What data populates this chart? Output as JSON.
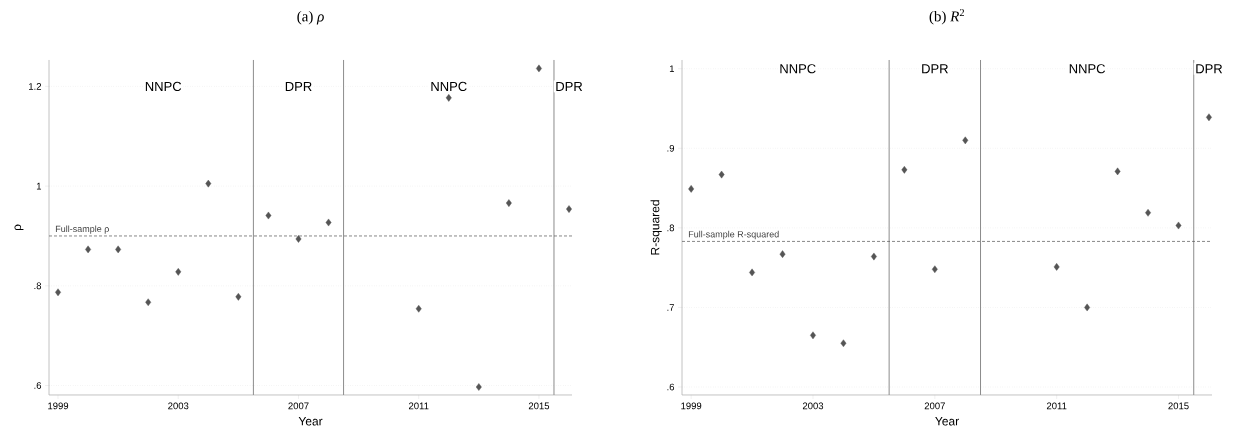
{
  "chart_data": [
    {
      "type": "scatter",
      "title": "(a) *ρ*",
      "xlabel": "Year",
      "ylabel": "ρ",
      "x": [
        1999,
        2000,
        2001,
        2002,
        2003,
        2004,
        2005,
        2006,
        2007,
        2008,
        2011,
        2012,
        2013,
        2014,
        2015,
        2016
      ],
      "values": [
        0.787,
        0.873,
        0.873,
        0.767,
        0.828,
        1.005,
        0.778,
        0.941,
        0.894,
        0.927,
        0.754,
        1.177,
        0.597,
        0.966,
        1.236,
        0.954
      ],
      "color": "#555555",
      "marker": "diamond",
      "xlim": [
        1998.7,
        2016.1
      ],
      "ylim": [
        0.581,
        1.253
      ],
      "xticks": [
        1999,
        2003,
        2007,
        2011,
        2015
      ],
      "yticks": [
        {
          "value": 0.6,
          "label": ".6"
        },
        {
          "value": 0.8,
          "label": ".8"
        },
        {
          "value": 1,
          "label": "1"
        },
        {
          "value": 1.2,
          "label": "1.2"
        }
      ],
      "grid": "y",
      "ref_lines": [
        {
          "axis": "x",
          "value": 2005.5,
          "color": "#8c8c8c"
        },
        {
          "axis": "x",
          "value": 2008.5,
          "color": "#8c8c8c"
        },
        {
          "axis": "x",
          "value": 2015.5,
          "color": "#8c8c8c"
        },
        {
          "axis": "y",
          "value": 0.9,
          "label": "Full-sample ρ",
          "color": "#555555",
          "line_style": "dashed"
        }
      ],
      "annotations": [
        {
          "text": "NNPC",
          "x": 2002.5,
          "y": 1.2
        },
        {
          "text": "DPR",
          "x": 2007,
          "y": 1.2
        },
        {
          "text": "NNPC",
          "x": 2012,
          "y": 1.2
        },
        {
          "text": "DPR",
          "x": 2016,
          "y": 1.2
        }
      ]
    },
    {
      "type": "scatter",
      "title": "(b) *R*$^{2}$",
      "xlabel": "Year",
      "ylabel": "R-squared",
      "x": [
        1999,
        2000,
        2001,
        2002,
        2003,
        2004,
        2005,
        2006,
        2007,
        2008,
        2011,
        2012,
        2013,
        2014,
        2015,
        2016
      ],
      "values": [
        0.849,
        0.867,
        0.744,
        0.767,
        0.665,
        0.655,
        0.764,
        0.873,
        0.748,
        0.91,
        0.751,
        0.7,
        0.871,
        0.819,
        0.803,
        0.939
      ],
      "color": "#555555",
      "marker": "diamond",
      "xlim": [
        1998.7,
        2016.1
      ],
      "ylim": [
        0.59,
        1.011
      ],
      "xticks": [
        1999,
        2003,
        2007,
        2011,
        2015
      ],
      "yticks": [
        {
          "value": 0.6,
          "label": ".6"
        },
        {
          "value": 0.7,
          "label": ".7"
        },
        {
          "value": 0.8,
          "label": ".8"
        },
        {
          "value": 0.9,
          "label": ".9"
        },
        {
          "value": 1,
          "label": "1"
        }
      ],
      "grid": "y",
      "ref_lines": [
        {
          "axis": "x",
          "value": 2005.5,
          "color": "#8c8c8c"
        },
        {
          "axis": "x",
          "value": 2008.5,
          "color": "#8c8c8c"
        },
        {
          "axis": "x",
          "value": 2015.5,
          "color": "#8c8c8c"
        },
        {
          "axis": "y",
          "value": 0.783,
          "label": "Full-sample R-squared",
          "color": "#555555",
          "line_style": "dashed"
        }
      ],
      "annotations": [
        {
          "text": "NNPC",
          "x": 2002.5,
          "y": 1.0
        },
        {
          "text": "DPR",
          "x": 2007,
          "y": 1.0
        },
        {
          "text": "NNPC",
          "x": 2012,
          "y": 1.0
        },
        {
          "text": "DPR",
          "x": 2016,
          "y": 1.0
        }
      ]
    }
  ]
}
